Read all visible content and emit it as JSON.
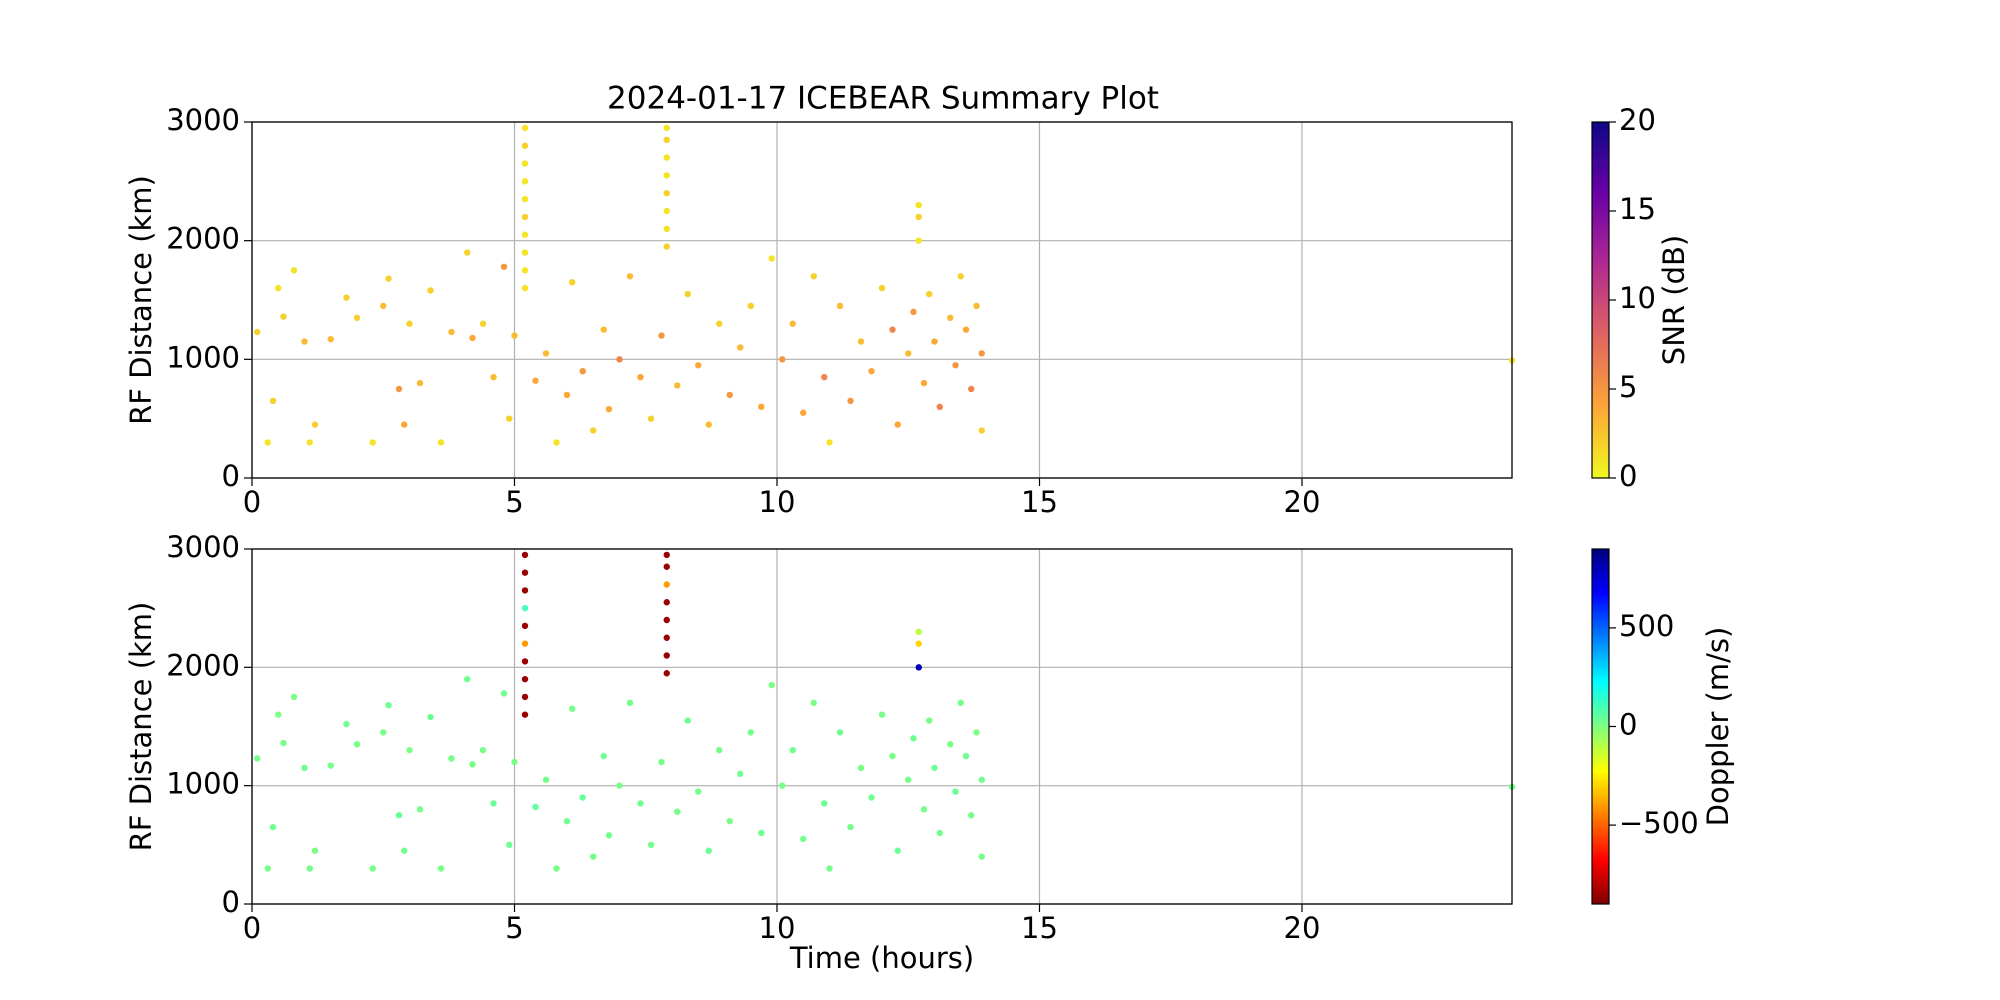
{
  "chart_data": [
    {
      "type": "scatter",
      "title": "2024-01-17 ICEBEAR Summary Plot",
      "ylabel": "RF Distance (km)",
      "xlim": [
        0,
        24
      ],
      "xticks": [
        0,
        5,
        10,
        15,
        20
      ],
      "ylim": [
        0,
        3000
      ],
      "yticks": [
        0,
        1000,
        2000,
        3000
      ],
      "grid": true,
      "x": [
        0.1,
        0.3,
        0.4,
        0.5,
        0.6,
        0.8,
        1.0,
        1.1,
        1.2,
        1.5,
        1.8,
        2.0,
        2.3,
        2.5,
        2.6,
        2.8,
        2.9,
        3.0,
        3.2,
        3.4,
        3.6,
        3.8,
        4.1,
        4.2,
        4.4,
        4.6,
        4.8,
        4.9,
        5.0,
        5.4,
        5.6,
        5.8,
        6.0,
        6.1,
        6.3,
        6.5,
        6.7,
        6.8,
        7.0,
        7.2,
        7.4,
        7.6,
        7.8,
        8.1,
        8.3,
        8.5,
        8.7,
        8.9,
        9.1,
        9.3,
        9.5,
        9.7,
        9.9,
        10.1,
        10.3,
        10.5,
        10.7,
        10.9,
        11.0,
        11.2,
        11.4,
        11.6,
        11.8,
        12.0,
        12.2,
        12.3,
        12.5,
        12.6,
        12.8,
        12.9,
        13.0,
        13.1,
        13.3,
        13.4,
        13.5,
        13.6,
        13.7,
        13.8,
        13.9,
        13.9,
        24.0,
        5.2,
        5.2,
        5.2,
        5.2,
        5.2,
        5.2,
        5.2,
        5.2,
        5.2,
        5.2,
        7.9,
        7.9,
        7.9,
        7.9,
        7.9,
        7.9,
        7.9,
        7.9,
        12.7,
        12.7,
        12.7
      ],
      "y": [
        1230,
        300,
        650,
        1600,
        1360,
        1750,
        1150,
        300,
        450,
        1170,
        1520,
        1350,
        300,
        1450,
        1680,
        750,
        450,
        1300,
        800,
        1580,
        300,
        1230,
        1900,
        1180,
        1300,
        850,
        1780,
        500,
        1200,
        820,
        1050,
        300,
        700,
        1650,
        900,
        400,
        1250,
        580,
        1000,
        1700,
        850,
        500,
        1200,
        780,
        1550,
        950,
        450,
        1300,
        700,
        1100,
        1450,
        600,
        1850,
        1000,
        1300,
        550,
        1700,
        850,
        300,
        1450,
        650,
        1150,
        900,
        1600,
        1250,
        450,
        1050,
        1400,
        800,
        1550,
        1150,
        600,
        1350,
        950,
        1700,
        1250,
        750,
        1450,
        1050,
        400,
        990,
        1600,
        1750,
        1900,
        2050,
        2200,
        2350,
        2500,
        2650,
        2800,
        2950,
        1950,
        2100,
        2250,
        2400,
        2550,
        2700,
        2850,
        2950,
        2000,
        2200,
        2300
      ],
      "c": [
        2,
        1,
        2,
        1,
        2,
        1,
        3,
        1,
        2,
        3,
        2,
        2,
        1,
        3,
        2,
        5,
        4,
        2,
        3,
        2,
        1,
        3,
        2,
        4,
        2,
        3,
        5,
        2,
        3,
        4,
        3,
        1,
        4,
        2,
        5,
        2,
        3,
        4,
        6,
        3,
        4,
        2,
        5,
        3,
        2,
        4,
        3,
        2,
        5,
        3,
        2,
        4,
        1,
        5,
        3,
        4,
        2,
        6,
        1,
        3,
        5,
        3,
        4,
        2,
        6,
        4,
        3,
        5,
        4,
        2,
        4,
        6,
        3,
        5,
        2,
        4,
        6,
        3,
        5,
        2,
        1,
        1,
        1,
        1,
        1,
        2,
        1,
        1,
        1,
        2,
        1,
        2,
        1,
        1,
        2,
        1,
        1,
        2,
        1,
        1,
        2,
        1
      ],
      "colorbar": {
        "label": "SNR (dB)",
        "lim": [
          0,
          20
        ],
        "ticks": [
          0,
          5,
          10,
          15,
          20
        ],
        "colormap": [
          "#f0f921",
          "#fca636",
          "#e16462",
          "#b12a90",
          "#6a00a8",
          "#0d0887"
        ]
      }
    },
    {
      "type": "scatter",
      "ylabel": "RF Distance (km)",
      "xlabel": "Time (hours)",
      "xlim": [
        0,
        24
      ],
      "xticks": [
        0,
        5,
        10,
        15,
        20
      ],
      "ylim": [
        0,
        3000
      ],
      "yticks": [
        0,
        1000,
        2000,
        3000
      ],
      "grid": true,
      "x": [
        0.1,
        0.3,
        0.4,
        0.5,
        0.6,
        0.8,
        1.0,
        1.1,
        1.2,
        1.5,
        1.8,
        2.0,
        2.3,
        2.5,
        2.6,
        2.8,
        2.9,
        3.0,
        3.2,
        3.4,
        3.6,
        3.8,
        4.1,
        4.2,
        4.4,
        4.6,
        4.8,
        4.9,
        5.0,
        5.4,
        5.6,
        5.8,
        6.0,
        6.1,
        6.3,
        6.5,
        6.7,
        6.8,
        7.0,
        7.2,
        7.4,
        7.6,
        7.8,
        8.1,
        8.3,
        8.5,
        8.7,
        8.9,
        9.1,
        9.3,
        9.5,
        9.7,
        9.9,
        10.1,
        10.3,
        10.5,
        10.7,
        10.9,
        11.0,
        11.2,
        11.4,
        11.6,
        11.8,
        12.0,
        12.2,
        12.3,
        12.5,
        12.6,
        12.8,
        12.9,
        13.0,
        13.1,
        13.3,
        13.4,
        13.5,
        13.6,
        13.7,
        13.8,
        13.9,
        13.9,
        24.0,
        5.2,
        5.2,
        5.2,
        5.2,
        5.2,
        5.2,
        5.2,
        5.2,
        5.2,
        5.2,
        7.9,
        7.9,
        7.9,
        7.9,
        7.9,
        7.9,
        7.9,
        7.9,
        12.7,
        12.7,
        12.7
      ],
      "y": [
        1230,
        300,
        650,
        1600,
        1360,
        1750,
        1150,
        300,
        450,
        1170,
        1520,
        1350,
        300,
        1450,
        1680,
        750,
        450,
        1300,
        800,
        1580,
        300,
        1230,
        1900,
        1180,
        1300,
        850,
        1780,
        500,
        1200,
        820,
        1050,
        300,
        700,
        1650,
        900,
        400,
        1250,
        580,
        1000,
        1700,
        850,
        500,
        1200,
        780,
        1550,
        950,
        450,
        1300,
        700,
        1100,
        1450,
        600,
        1850,
        1000,
        1300,
        550,
        1700,
        850,
        300,
        1450,
        650,
        1150,
        900,
        1600,
        1250,
        450,
        1050,
        1400,
        800,
        1550,
        1150,
        600,
        1350,
        950,
        1700,
        1250,
        750,
        1450,
        1050,
        400,
        990,
        1600,
        1750,
        1900,
        2050,
        2200,
        2350,
        2500,
        2650,
        2800,
        2950,
        1950,
        2100,
        2250,
        2400,
        2550,
        2700,
        2850,
        2950,
        2000,
        2200,
        2300
      ],
      "c": [
        20,
        10,
        30,
        0,
        20,
        10,
        30,
        20,
        10,
        20,
        30,
        20,
        10,
        20,
        30,
        40,
        20,
        10,
        20,
        30,
        10,
        20,
        30,
        20,
        10,
        40,
        20,
        30,
        20,
        60,
        20,
        10,
        30,
        20,
        40,
        20,
        30,
        20,
        10,
        20,
        30,
        20,
        10,
        20,
        30,
        20,
        40,
        20,
        10,
        30,
        20,
        30,
        10,
        20,
        30,
        20,
        10,
        40,
        20,
        30,
        20,
        10,
        30,
        20,
        10,
        40,
        20,
        30,
        20,
        10,
        30,
        20,
        10,
        40,
        20,
        30,
        20,
        10,
        30,
        20,
        20,
        -850,
        -850,
        -850,
        -850,
        -400,
        -850,
        100,
        -850,
        -850,
        -850,
        -850,
        -850,
        -850,
        -850,
        -850,
        -400,
        -850,
        -850,
        800,
        -300,
        -100
      ],
      "colorbar": {
        "label": "Doppler (m/s)",
        "lim": [
          -900,
          900
        ],
        "ticks": [
          {
            "value": -500,
            "label": "−500"
          },
          0,
          500
        ],
        "colormap": [
          "#7f0000",
          "#ff0000",
          "#ff7f00",
          "#ffff00",
          "#7fff7f",
          "#00ffff",
          "#007fff",
          "#0000ff",
          "#00007f"
        ]
      }
    }
  ]
}
